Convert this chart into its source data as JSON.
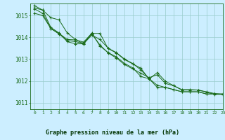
{
  "title": "Graphe pression niveau de la mer (hPa)",
  "bg_color": "#cceeff",
  "plot_bg_color": "#cceeff",
  "bottom_bg_color": "#55aa99",
  "line_color": "#1a6b1a",
  "grid_color": "#99cccc",
  "xlim": [
    -0.5,
    23
  ],
  "ylim": [
    1010.7,
    1015.55
  ],
  "yticks": [
    1011,
    1012,
    1013,
    1014,
    1015
  ],
  "xticks": [
    0,
    1,
    2,
    3,
    4,
    5,
    6,
    7,
    8,
    9,
    10,
    11,
    12,
    13,
    14,
    15,
    16,
    17,
    18,
    19,
    20,
    21,
    22,
    23
  ],
  "series": [
    [
      1015.35,
      1015.25,
      1014.45,
      1014.2,
      1013.8,
      1013.7,
      1013.7,
      1014.2,
      1013.6,
      1013.3,
      1013.1,
      1012.8,
      1012.6,
      1012.2,
      1012.1,
      1011.7,
      1011.7,
      1011.6,
      1011.5,
      1011.5,
      1011.5,
      1011.4,
      1011.4,
      1011.4
    ],
    [
      1015.1,
      1015.0,
      1014.4,
      1014.15,
      1013.85,
      1013.8,
      1013.72,
      1014.15,
      1013.65,
      1013.28,
      1013.05,
      1012.75,
      1012.55,
      1012.35,
      1012.15,
      1012.28,
      1011.88,
      1011.78,
      1011.6,
      1011.6,
      1011.58,
      1011.5,
      1011.42,
      1011.38
    ],
    [
      1015.3,
      1015.1,
      1014.4,
      1014.18,
      1013.9,
      1013.88,
      1013.78,
      1014.18,
      1014.18,
      1013.48,
      1013.28,
      1012.98,
      1012.78,
      1012.58,
      1012.08,
      1012.38,
      1011.98,
      1011.78,
      1011.58,
      1011.58,
      1011.58,
      1011.48,
      1011.38,
      1011.38
    ],
    [
      1015.45,
      1015.25,
      1014.9,
      1014.8,
      1014.2,
      1013.9,
      1013.7,
      1014.1,
      1013.9,
      1013.5,
      1013.3,
      1013.0,
      1012.8,
      1012.5,
      1012.1,
      1011.8,
      1011.7,
      1011.6,
      1011.5,
      1011.5,
      1011.5,
      1011.4,
      1011.4,
      1011.4
    ]
  ]
}
